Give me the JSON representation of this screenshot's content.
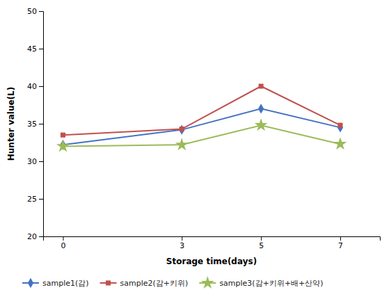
{
  "chart_data": {
    "type": "line",
    "x": [
      0,
      3,
      5,
      7
    ],
    "xlabel": "Storage time(days)",
    "ylabel": "Hunter value(L)",
    "xlim": [
      -0.5,
      8.0
    ],
    "xticks": [
      0,
      3,
      5,
      7
    ],
    "ylim": [
      20,
      50
    ],
    "yticks": [
      20,
      25,
      30,
      35,
      40,
      45,
      50
    ],
    "grid": false,
    "legend": "bottom",
    "series": [
      {
        "name": "sample1(감)",
        "color": "#4472C4",
        "marker": "diamond",
        "values": [
          32.2,
          34.2,
          37.0,
          34.5
        ]
      },
      {
        "name": "sample2(감+키위)",
        "color": "#C0504D",
        "marker": "square",
        "values": [
          33.5,
          34.3,
          40.0,
          34.8
        ]
      },
      {
        "name": "sample3(감+키위+배+산약)",
        "color": "#9BBB59",
        "marker": "star",
        "values": [
          32.0,
          32.2,
          34.8,
          32.3
        ]
      }
    ]
  }
}
